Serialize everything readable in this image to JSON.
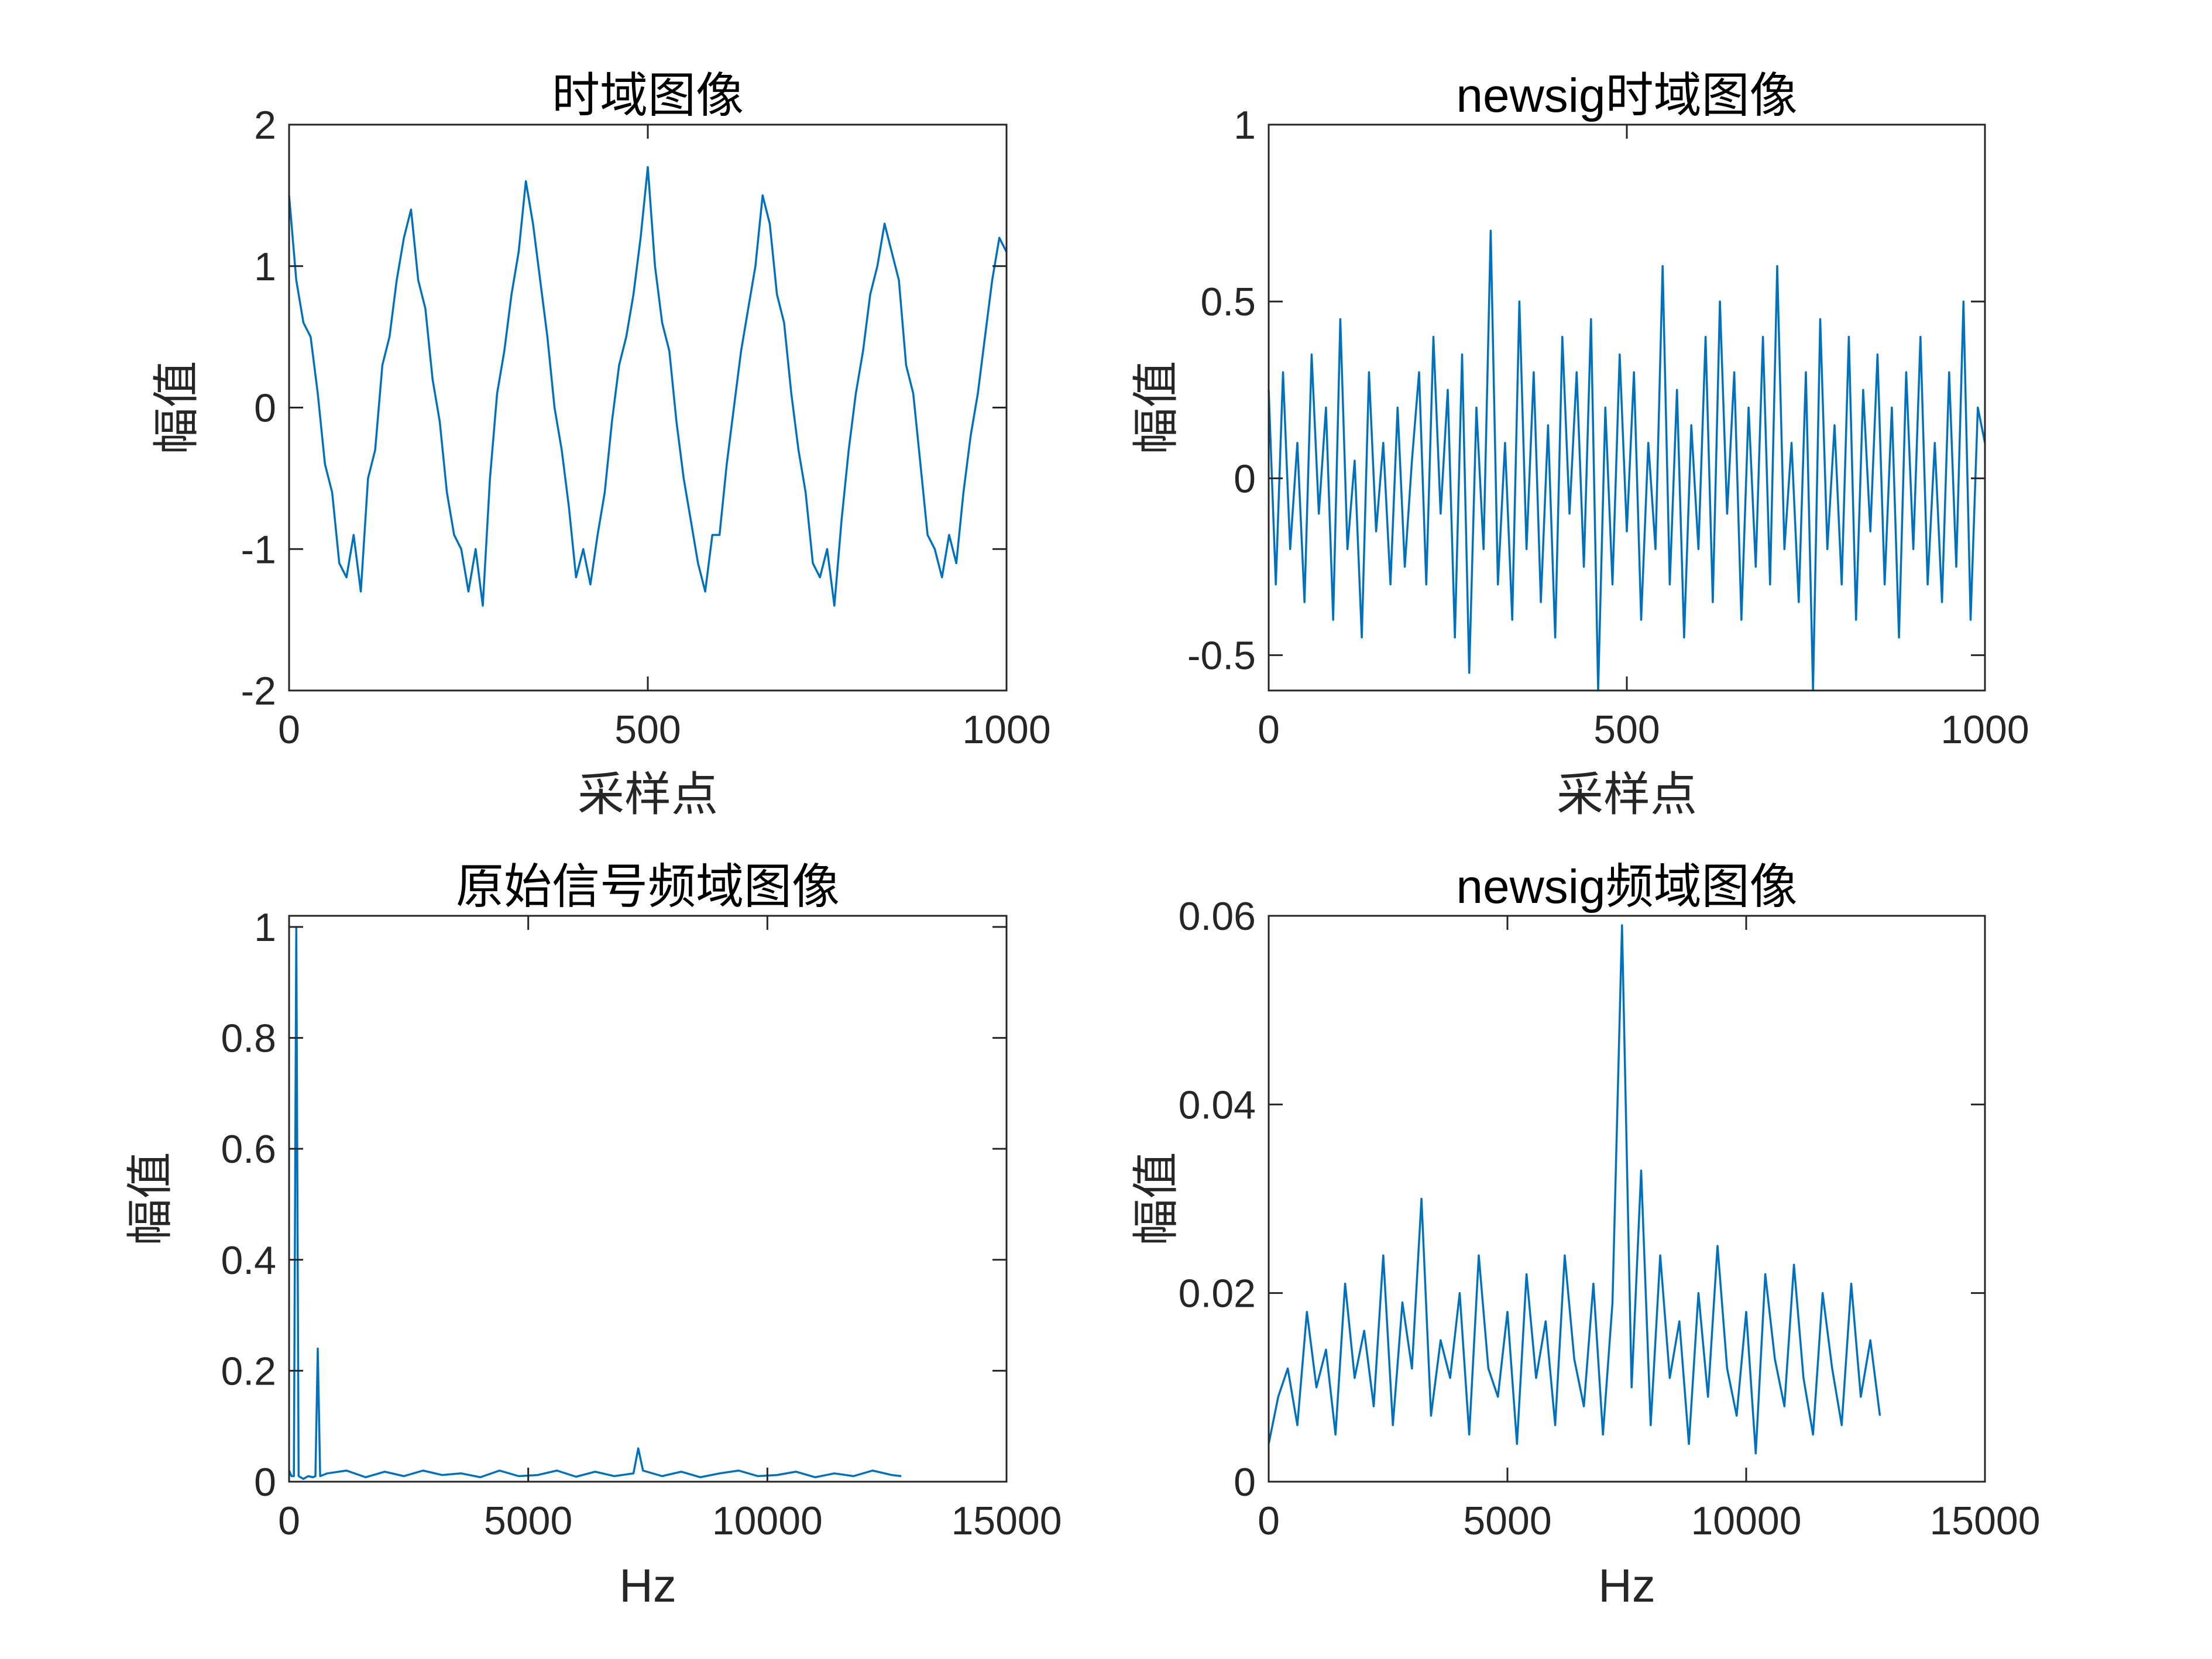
{
  "chart_data": [
    {
      "type": "line",
      "title": "时域图像",
      "xlabel": "采样点",
      "ylabel": "幅值",
      "color": "#0072bd",
      "x": [
        0,
        10,
        20,
        30,
        40,
        50,
        60,
        70,
        80,
        90,
        100,
        110,
        120,
        130,
        140,
        150,
        160,
        170,
        180,
        190,
        200,
        210,
        220,
        230,
        240,
        250,
        260,
        270,
        280,
        290,
        300,
        310,
        320,
        330,
        340,
        350,
        360,
        370,
        380,
        390,
        400,
        410,
        420,
        430,
        440,
        450,
        460,
        470,
        480,
        490,
        500,
        510,
        520,
        530,
        540,
        550,
        560,
        570,
        580,
        590,
        600,
        610,
        620,
        630,
        640,
        650,
        660,
        670,
        680,
        690,
        700,
        710,
        720,
        730,
        740,
        750,
        760,
        770,
        780,
        790,
        800,
        810,
        820,
        830,
        840,
        850,
        860,
        870,
        880,
        890,
        900,
        910,
        920,
        930,
        940,
        950,
        960,
        970,
        980,
        990,
        1000
      ],
      "values": [
        1.5,
        0.9,
        0.6,
        0.5,
        0.1,
        -0.4,
        -0.6,
        -1.1,
        -1.2,
        -0.9,
        -1.3,
        -0.5,
        -0.3,
        0.3,
        0.5,
        0.9,
        1.2,
        1.4,
        0.9,
        0.7,
        0.2,
        -0.1,
        -0.6,
        -0.9,
        -1.0,
        -1.3,
        -1.0,
        -1.4,
        -0.5,
        0.1,
        0.4,
        0.8,
        1.1,
        1.6,
        1.3,
        0.9,
        0.5,
        0.0,
        -0.3,
        -0.7,
        -1.2,
        -1.0,
        -1.25,
        -0.9,
        -0.6,
        -0.1,
        0.3,
        0.5,
        0.8,
        1.2,
        1.7,
        1.0,
        0.6,
        0.4,
        -0.1,
        -0.5,
        -0.8,
        -1.1,
        -1.3,
        -0.9,
        -0.9,
        -0.4,
        0.0,
        0.4,
        0.7,
        1.0,
        1.5,
        1.3,
        0.8,
        0.6,
        0.1,
        -0.3,
        -0.6,
        -1.1,
        -1.2,
        -1.0,
        -1.4,
        -0.8,
        -0.3,
        0.1,
        0.4,
        0.8,
        1.0,
        1.3,
        1.1,
        0.9,
        0.3,
        0.1,
        -0.4,
        -0.9,
        -1.0,
        -1.2,
        -0.9,
        -1.1,
        -0.6,
        -0.2,
        0.1,
        0.5,
        0.9,
        1.2,
        1.1
      ],
      "xlim": [
        0,
        1000
      ],
      "ylim": [
        -2,
        2
      ],
      "xticks": [
        0,
        500,
        1000
      ],
      "yticks": [
        -2,
        -1,
        0,
        1,
        2
      ]
    },
    {
      "type": "line",
      "title": "newsig时域图像",
      "xlabel": "采样点",
      "ylabel": "幅值",
      "color": "#0072bd",
      "x": [
        0,
        10,
        20,
        30,
        40,
        50,
        60,
        70,
        80,
        90,
        100,
        110,
        120,
        130,
        140,
        150,
        160,
        170,
        180,
        190,
        200,
        210,
        220,
        230,
        240,
        250,
        260,
        270,
        280,
        290,
        300,
        310,
        320,
        330,
        340,
        350,
        360,
        370,
        380,
        390,
        400,
        410,
        420,
        430,
        440,
        450,
        460,
        470,
        480,
        490,
        500,
        510,
        520,
        530,
        540,
        550,
        560,
        570,
        580,
        590,
        600,
        610,
        620,
        630,
        640,
        650,
        660,
        670,
        680,
        690,
        700,
        710,
        720,
        730,
        740,
        750,
        760,
        770,
        780,
        790,
        800,
        810,
        820,
        830,
        840,
        850,
        860,
        870,
        880,
        890,
        900,
        910,
        920,
        930,
        940,
        950,
        960,
        970,
        980,
        990,
        1000
      ],
      "values": [
        0.25,
        -0.3,
        0.3,
        -0.2,
        0.1,
        -0.35,
        0.35,
        -0.1,
        0.2,
        -0.4,
        0.45,
        -0.2,
        0.05,
        -0.45,
        0.3,
        -0.15,
        0.1,
        -0.3,
        0.2,
        -0.25,
        0.05,
        0.3,
        -0.3,
        0.4,
        -0.1,
        0.25,
        -0.45,
        0.35,
        -0.55,
        0.2,
        -0.2,
        0.7,
        -0.3,
        0.1,
        -0.4,
        0.5,
        -0.2,
        0.3,
        -0.35,
        0.15,
        -0.45,
        0.4,
        -0.1,
        0.3,
        -0.25,
        0.45,
        -0.6,
        0.2,
        -0.3,
        0.35,
        -0.15,
        0.3,
        -0.4,
        0.1,
        -0.2,
        0.6,
        -0.3,
        0.25,
        -0.45,
        0.15,
        -0.2,
        0.4,
        -0.35,
        0.5,
        -0.1,
        0.3,
        -0.4,
        0.2,
        -0.25,
        0.4,
        -0.3,
        0.6,
        -0.2,
        0.1,
        -0.35,
        0.3,
        -0.6,
        0.45,
        -0.2,
        0.15,
        -0.3,
        0.4,
        -0.4,
        0.25,
        -0.15,
        0.35,
        -0.3,
        0.2,
        -0.45,
        0.3,
        -0.2,
        0.4,
        -0.3,
        0.1,
        -0.35,
        0.3,
        -0.25,
        0.5,
        -0.4,
        0.2,
        0.1
      ],
      "xlim": [
        0,
        1000
      ],
      "ylim": [
        -0.6,
        1
      ],
      "xticks": [
        0,
        500,
        1000
      ],
      "yticks": [
        -0.5,
        0,
        0.5,
        1
      ]
    },
    {
      "type": "line",
      "title": "原始信号频域图像",
      "xlabel": "Hz",
      "ylabel": "幅值",
      "color": "#0072bd",
      "x": [
        0,
        50,
        100,
        150,
        200,
        300,
        400,
        500,
        550,
        600,
        650,
        800,
        1200,
        1600,
        2000,
        2400,
        2800,
        3200,
        3600,
        4000,
        4400,
        4800,
        5200,
        5600,
        6000,
        6400,
        6800,
        7200,
        7300,
        7400,
        7800,
        8200,
        8600,
        9000,
        9400,
        9800,
        10200,
        10600,
        11000,
        11400,
        11800,
        12200,
        12600,
        12800
      ],
      "values": [
        0.02,
        0.01,
        0.01,
        1.0,
        0.01,
        0.005,
        0.01,
        0.008,
        0.01,
        0.24,
        0.01,
        0.015,
        0.02,
        0.008,
        0.018,
        0.01,
        0.02,
        0.012,
        0.015,
        0.008,
        0.02,
        0.01,
        0.012,
        0.02,
        0.009,
        0.018,
        0.01,
        0.015,
        0.06,
        0.02,
        0.01,
        0.018,
        0.008,
        0.015,
        0.02,
        0.01,
        0.012,
        0.018,
        0.008,
        0.015,
        0.01,
        0.02,
        0.012,
        0.01
      ],
      "xlim": [
        0,
        15000
      ],
      "ylim": [
        0,
        1.02
      ],
      "xticks": [
        0,
        5000,
        10000,
        15000
      ],
      "yticks": [
        0,
        0.2,
        0.4,
        0.6,
        0.8,
        1
      ]
    },
    {
      "type": "line",
      "title": "newsig频域图像",
      "xlabel": "Hz",
      "ylabel": "幅值",
      "color": "#0072bd",
      "x": [
        0,
        200,
        400,
        600,
        800,
        1000,
        1200,
        1400,
        1600,
        1800,
        2000,
        2200,
        2400,
        2600,
        2800,
        3000,
        3200,
        3400,
        3600,
        3800,
        4000,
        4200,
        4400,
        4600,
        4800,
        5000,
        5200,
        5400,
        5600,
        5800,
        6000,
        6200,
        6400,
        6600,
        6800,
        7000,
        7200,
        7400,
        7600,
        7800,
        8000,
        8200,
        8400,
        8600,
        8800,
        9000,
        9200,
        9400,
        9600,
        9800,
        10000,
        10200,
        10400,
        10600,
        10800,
        11000,
        11200,
        11400,
        11600,
        11800,
        12000,
        12200,
        12400,
        12600,
        12800
      ],
      "values": [
        0.004,
        0.009,
        0.012,
        0.006,
        0.018,
        0.01,
        0.014,
        0.005,
        0.021,
        0.011,
        0.016,
        0.008,
        0.024,
        0.006,
        0.019,
        0.012,
        0.03,
        0.007,
        0.015,
        0.011,
        0.02,
        0.005,
        0.024,
        0.012,
        0.009,
        0.018,
        0.004,
        0.022,
        0.011,
        0.017,
        0.006,
        0.024,
        0.013,
        0.008,
        0.021,
        0.005,
        0.019,
        0.059,
        0.01,
        0.033,
        0.006,
        0.024,
        0.011,
        0.017,
        0.004,
        0.02,
        0.009,
        0.025,
        0.012,
        0.007,
        0.018,
        0.003,
        0.022,
        0.013,
        0.008,
        0.023,
        0.011,
        0.005,
        0.02,
        0.012,
        0.006,
        0.021,
        0.009,
        0.015,
        0.007
      ],
      "xlim": [
        0,
        15000
      ],
      "ylim": [
        0,
        0.06
      ],
      "xticks": [
        0,
        5000,
        10000,
        15000
      ],
      "yticks": [
        0,
        0.02,
        0.04,
        0.06
      ]
    }
  ]
}
